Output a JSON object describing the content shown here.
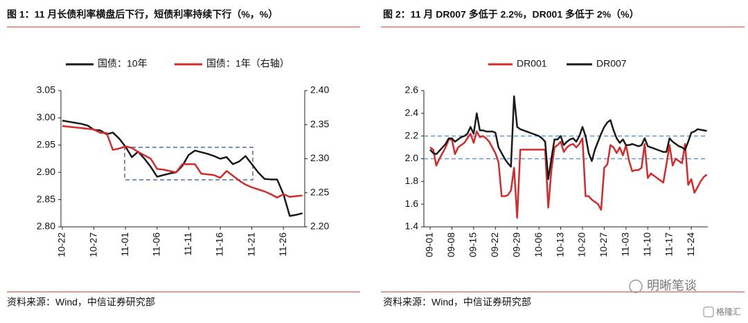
{
  "chart_data": [
    {
      "type": "line",
      "title": "图 1：11 月长债利率横盘后下行，短债利率持续下行（%，%）",
      "source": "资料来源：Wind，中信证券研究部",
      "categories": [
        "10-22",
        null,
        null,
        null,
        null,
        "10-27",
        null,
        null,
        null,
        null,
        "11-01",
        null,
        null,
        null,
        null,
        "11-06",
        null,
        null,
        null,
        null,
        "11-11",
        null,
        null,
        null,
        null,
        "11-16",
        null,
        null,
        null,
        null,
        "11-21",
        null,
        null,
        null,
        null,
        "11-26",
        null,
        null,
        null
      ],
      "series": [
        {
          "name": "国债：10年",
          "color": "#1a1a1a",
          "values": [
            2.995,
            2.993,
            2.991,
            2.989,
            2.986,
            2.978,
            2.977,
            2.97,
            2.973,
            2.962,
            2.947,
            2.928,
            2.938,
            2.925,
            2.91,
            2.892,
            2.895,
            2.898,
            2.9,
            2.912,
            2.932,
            2.94,
            2.937,
            2.934,
            2.93,
            2.925,
            2.928,
            2.915,
            2.92,
            2.93,
            2.915,
            2.9,
            2.888,
            2.887,
            2.887,
            2.86,
            2.82,
            2.822,
            2.825
          ]
        },
        {
          "name": "国债：1年（右轴）",
          "color": "#d42a2a",
          "axis": "y2",
          "values": [
            2.348,
            2.347,
            2.346,
            2.345,
            2.344,
            2.343,
            2.338,
            2.338,
            2.313,
            2.315,
            2.318,
            2.316,
            2.31,
            2.305,
            2.3,
            2.285,
            2.284,
            2.282,
            2.28,
            2.292,
            2.292,
            2.292,
            2.278,
            2.277,
            2.276,
            2.272,
            2.282,
            2.275,
            2.268,
            2.262,
            2.258,
            2.255,
            2.252,
            2.248,
            2.243,
            2.248,
            2.244,
            2.245,
            2.246
          ]
        }
      ],
      "ylim": [
        2.8,
        3.05
      ],
      "yticks": [
        {
          "value": 2.8,
          "label": "2.80"
        },
        2.85,
        {
          "value": 2.9,
          "label": "2.90"
        },
        2.95,
        {
          "value": 3.0,
          "label": "3.00"
        },
        3.05
      ],
      "y2lim": [
        2.2,
        2.4
      ],
      "y2ticks": [
        {
          "value": 2.2,
          "label": "2.20"
        },
        2.25,
        {
          "value": 2.3,
          "label": "2.30"
        },
        2.35,
        {
          "value": 2.4,
          "label": "2.40"
        }
      ],
      "legend": "top"
    },
    {
      "type": "line",
      "title": "图 2：11 月 DR007 多低于 2.2%，DR001 多低于 2%（%）",
      "source": "资料来源：Wind，中信证券研究部",
      "categories": [
        "09-01",
        null,
        null,
        null,
        null,
        null,
        null,
        "09-08",
        null,
        null,
        null,
        null,
        null,
        null,
        "09-15",
        null,
        null,
        null,
        null,
        null,
        null,
        "09-22",
        null,
        null,
        null,
        null,
        null,
        null,
        "09-29",
        null,
        null,
        null,
        null,
        null,
        null,
        "10-06",
        null,
        null,
        null,
        null,
        null,
        null,
        "10-13",
        null,
        null,
        null,
        null,
        null,
        null,
        "10-20",
        null,
        null,
        null,
        null,
        null,
        null,
        "10-27",
        null,
        null,
        null,
        null,
        null,
        null,
        "11-03",
        null,
        null,
        null,
        null,
        null,
        null,
        "11-10",
        null,
        null,
        null,
        null,
        null,
        null,
        "11-17",
        null,
        null,
        null,
        null,
        null,
        null,
        "11-24",
        null,
        null,
        null,
        null,
        null
      ],
      "series": [
        {
          "name": "DR001",
          "color": "#d42a2a",
          "values": [
            2.1,
            2.08,
            1.94,
            2.0,
            2.05,
            2.1,
            2.17,
            2.17,
            2.04,
            2.1,
            2.12,
            2.14,
            2.18,
            2.22,
            2.14,
            2.24,
            2.19,
            2.2,
            2.18,
            2.15,
            2.1,
            2.05,
            1.97,
            1.67,
            1.67,
            1.68,
            1.72,
            1.92,
            1.48,
            2.08,
            2.08,
            2.08,
            2.08,
            2.08,
            2.08,
            2.08,
            2.08,
            2.08,
            1.57,
            1.9,
            2.1,
            2.12,
            2.15,
            2.06,
            2.1,
            2.12,
            2.13,
            2.1,
            2.13,
            2.18,
            1.67,
            1.67,
            1.64,
            1.62,
            1.6,
            1.55,
            1.92,
            1.95,
            2.12,
            2.1,
            2.05,
            2.1,
            2.03,
            2.12,
            1.98,
            1.89,
            1.9,
            1.9,
            1.92,
            2.13,
            1.83,
            1.87,
            1.85,
            1.83,
            1.81,
            1.79,
            1.95,
            2.12,
            1.94,
            2.0,
            1.98,
            1.96,
            2.13,
            1.77,
            1.82,
            1.7,
            1.75,
            1.8,
            1.84,
            1.86
          ]
        },
        {
          "name": "DR007",
          "color": "#1a1a1a",
          "values": [
            2.08,
            2.05,
            2.04,
            2.07,
            2.1,
            2.13,
            2.18,
            2.18,
            2.15,
            2.17,
            2.19,
            2.2,
            2.22,
            2.28,
            2.22,
            2.4,
            2.25,
            2.25,
            2.24,
            2.24,
            2.24,
            2.23,
            2.1,
            2.05,
            2.0,
            1.96,
            1.93,
            2.55,
            2.28,
            2.26,
            2.25,
            2.24,
            2.23,
            2.22,
            2.21,
            2.2,
            2.18,
            2.15,
            1.82,
            2.0,
            2.17,
            2.17,
            2.2,
            2.12,
            2.15,
            2.17,
            2.18,
            2.15,
            2.2,
            2.28,
            2.2,
            2.05,
            1.98,
            2.08,
            2.15,
            2.22,
            2.28,
            2.32,
            2.34,
            2.25,
            2.18,
            2.14,
            2.17,
            2.12,
            2.12,
            2.13,
            2.12,
            2.11,
            2.12,
            2.18,
            2.11,
            2.1,
            2.09,
            2.08,
            2.07,
            2.06,
            2.06,
            2.18,
            2.15,
            2.13,
            2.11,
            2.1,
            2.08,
            2.15,
            2.23,
            2.24,
            2.26,
            2.255,
            2.25,
            2.245
          ]
        }
      ],
      "ylim": [
        1.4,
        2.6
      ],
      "yticks": [
        1.4,
        1.6,
        1.8,
        {
          "value": 2,
          "label": "2.0"
        },
        2.2,
        2.4,
        2.6
      ],
      "hlines": [
        2.2,
        2.0
      ],
      "hline_color": "#5b9bd5",
      "legend": "top"
    }
  ],
  "watermarks": [
    "明晰笔谈",
    "格隆汇"
  ]
}
